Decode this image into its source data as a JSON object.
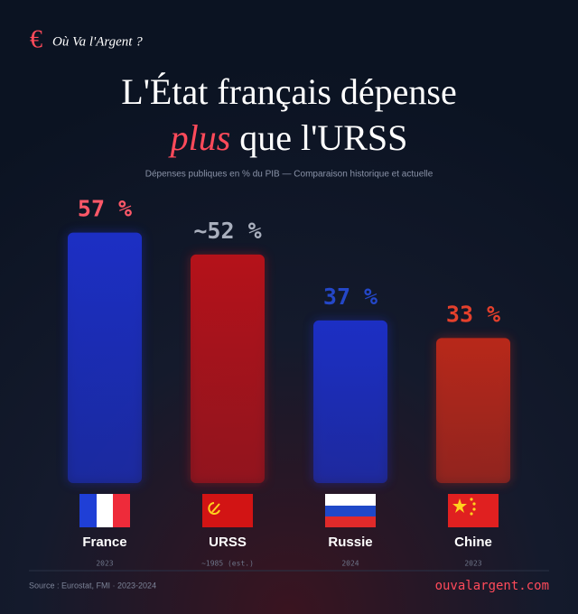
{
  "brand": {
    "icon": "€",
    "name": "Où Va l'Argent ?"
  },
  "chart_data": {
    "type": "bar",
    "title": {
      "line1": "L'État français dépense",
      "emphasis": "plus",
      "line2_rest": "que l'URSS"
    },
    "subtitle": "Dépenses publiques en % du PIB — Comparaison historique et actuelle",
    "categories": [
      "France",
      "URSS",
      "Russie",
      "Chine"
    ],
    "years": [
      "2023",
      "~1985 (est.)",
      "2024",
      "2023"
    ],
    "values": [
      57,
      52,
      37,
      33
    ],
    "value_labels": [
      "57 %",
      "~52 %",
      "37 %",
      "33 %"
    ],
    "colors": [
      "#1c2fc4",
      "#b5121a",
      "#1c2fc4",
      "#b8281a"
    ],
    "label_colors": [
      "#ff5868",
      "#a9afbd",
      "#2447c8",
      "#e4402c"
    ],
    "ylim": [
      0,
      60
    ]
  },
  "footer": {
    "source": "Source : Eurostat, FMI · 2023-2024",
    "site": "ouvalargent.com"
  }
}
